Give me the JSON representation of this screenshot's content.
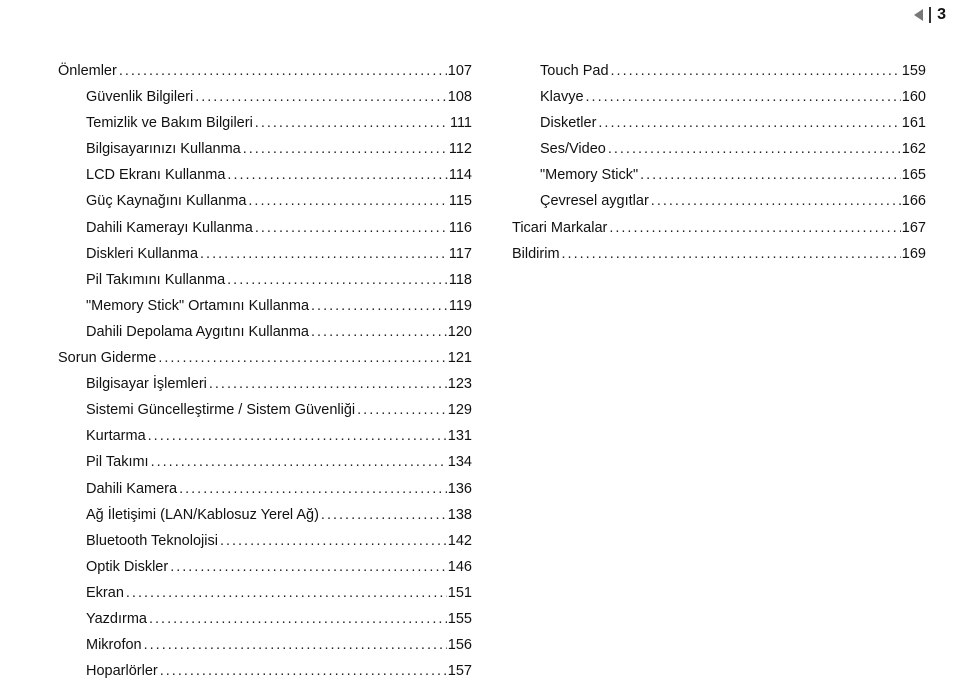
{
  "page_number": "3",
  "marker": {
    "triangle_color": "#777777",
    "bar_color": "#333333"
  },
  "font": {
    "family": "Arial",
    "size_pt": 11
  },
  "colors": {
    "text": "#111111",
    "background": "#ffffff"
  },
  "columns": {
    "left": [
      {
        "label": "Önlemler",
        "page": "107",
        "indent": 0
      },
      {
        "label": "Güvenlik Bilgileri",
        "page": "108",
        "indent": 1
      },
      {
        "label": "Temizlik ve Bakım Bilgileri",
        "page": "111",
        "indent": 1
      },
      {
        "label": "Bilgisayarınızı Kullanma",
        "page": "112",
        "indent": 1
      },
      {
        "label": "LCD Ekranı Kullanma",
        "page": "114",
        "indent": 1
      },
      {
        "label": "Güç Kaynağını Kullanma",
        "page": "115",
        "indent": 1
      },
      {
        "label": "Dahili Kamerayı Kullanma",
        "page": "116",
        "indent": 1
      },
      {
        "label": "Diskleri Kullanma",
        "page": "117",
        "indent": 1
      },
      {
        "label": "Pil Takımını Kullanma",
        "page": "118",
        "indent": 1
      },
      {
        "label": "\"Memory Stick\" Ortamını Kullanma",
        "page": "119",
        "indent": 1
      },
      {
        "label": "Dahili Depolama Aygıtını Kullanma",
        "page": "120",
        "indent": 1
      },
      {
        "label": "Sorun Giderme",
        "page": "121",
        "indent": 0
      },
      {
        "label": "Bilgisayar İşlemleri",
        "page": "123",
        "indent": 1
      },
      {
        "label": "Sistemi Güncelleştirme / Sistem Güvenliği",
        "page": "129",
        "indent": 1
      },
      {
        "label": "Kurtarma",
        "page": "131",
        "indent": 1
      },
      {
        "label": "Pil Takımı",
        "page": "134",
        "indent": 1
      },
      {
        "label": "Dahili Kamera",
        "page": "136",
        "indent": 1
      },
      {
        "label": "Ağ İletişimi (LAN/Kablosuz Yerel Ağ)",
        "page": "138",
        "indent": 1
      },
      {
        "label": "Bluetooth Teknolojisi",
        "page": "142",
        "indent": 1
      },
      {
        "label": "Optik Diskler",
        "page": "146",
        "indent": 1
      },
      {
        "label": "Ekran",
        "page": "151",
        "indent": 1
      },
      {
        "label": "Yazdırma",
        "page": "155",
        "indent": 1
      },
      {
        "label": "Mikrofon",
        "page": "156",
        "indent": 1
      },
      {
        "label": "Hoparlörler",
        "page": "157",
        "indent": 1
      }
    ],
    "right": [
      {
        "label": "Touch Pad",
        "page": "159",
        "indent": 1
      },
      {
        "label": "Klavye",
        "page": "160",
        "indent": 1
      },
      {
        "label": "Disketler",
        "page": "161",
        "indent": 1
      },
      {
        "label": "Ses/Video",
        "page": "162",
        "indent": 1
      },
      {
        "label": "\"Memory Stick\"",
        "page": "165",
        "indent": 1
      },
      {
        "label": "Çevresel aygıtlar",
        "page": "166",
        "indent": 1
      },
      {
        "label": "Ticari Markalar",
        "page": "167",
        "indent": 0
      },
      {
        "label": "Bildirim",
        "page": "169",
        "indent": 0
      }
    ]
  }
}
